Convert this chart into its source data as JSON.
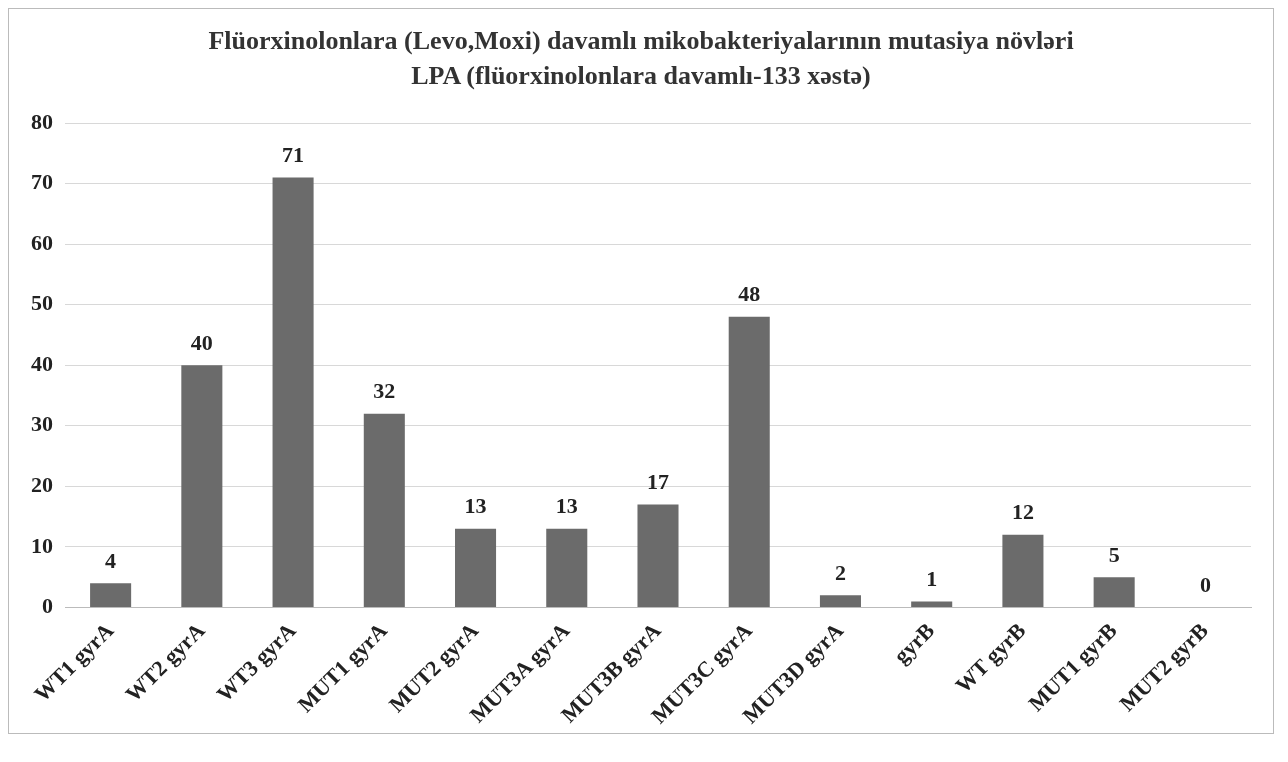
{
  "chart_data": {
    "type": "bar",
    "title": "Flüorxinolonlara (Levo,Moxi) davamlı mikobakteriyalarının mutasiya növləri LPA (flüorxinolonlara davamlı-133 xəstə)",
    "categories": [
      "WT1 gyrA",
      "WT2 gyrA",
      "WT3 gyrA",
      "MUT1 gyrA",
      "MUT2 gyrA",
      "MUT3A gyrA",
      "MUT3B gyrA",
      "MUT3C gyrA",
      "MUT3D gyrA",
      "gyrB",
      "WT gyrB",
      "MUT1 gyrB",
      "MUT2 gyrB"
    ],
    "values": [
      4,
      40,
      71,
      32,
      13,
      13,
      17,
      48,
      2,
      1,
      12,
      5,
      0
    ],
    "color": "#6b6b6b",
    "ylim": [
      0,
      80
    ],
    "yticks": [
      0,
      10,
      20,
      30,
      40,
      50,
      60,
      70,
      80
    ],
    "grid": "y",
    "data_labels": true
  }
}
